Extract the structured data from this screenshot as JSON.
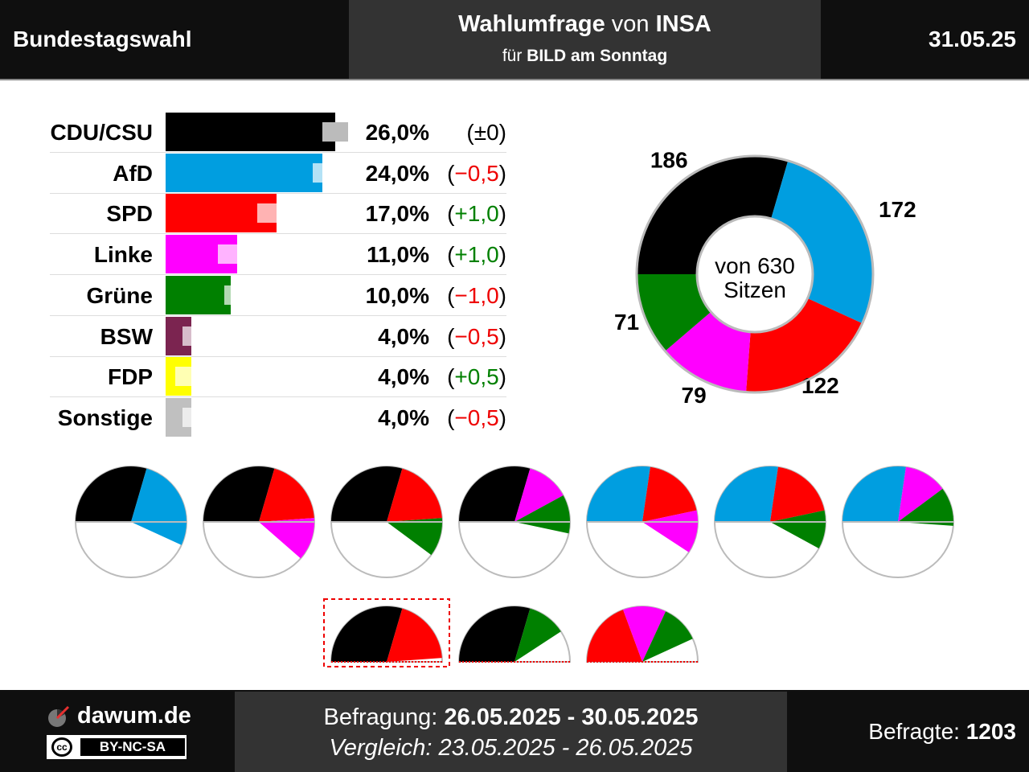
{
  "header": {
    "left": "Bundestagswahl",
    "title_bold1": "Wahlumfrage",
    "title_mid": " von ",
    "title_bold2": "INSA",
    "subtitle_pre": "für ",
    "subtitle_bold": "BILD am Sonntag",
    "date": "31.05.25"
  },
  "chart_data": [
    {
      "type": "bar",
      "orientation": "horizontal",
      "categories": [
        "CDU/CSU",
        "AfD",
        "SPD",
        "Linke",
        "Grüne",
        "BSW",
        "FDP",
        "Sonstige"
      ],
      "series": [
        {
          "values": [
            26.0,
            24.0,
            17.0,
            11.0,
            10.0,
            4.0,
            4.0,
            4.0
          ]
        },
        {
          "values": [
            26.0,
            24.5,
            16.0,
            10.0,
            11.0,
            4.5,
            3.5,
            4.5
          ]
        }
      ],
      "value_labels": [
        "26,0%",
        "24,0%",
        "17,0%",
        "11,0%",
        "10,0%",
        "4,0%",
        "4,0%",
        "4,0%"
      ],
      "change_labels": [
        "(±0)",
        "(−0,5)",
        "(+1,0)",
        "(+1,0)",
        "(−1,0)",
        "(−0,5)",
        "(+0,5)",
        "(−0,5)"
      ],
      "change_signs": [
        "neu",
        "neg",
        "pos",
        "pos",
        "neg",
        "neg",
        "pos",
        "neg"
      ],
      "colors": [
        "#000000",
        "#009ee0",
        "#ff0000",
        "#ff00ff",
        "#008000",
        "#7b2450",
        "#ffff00",
        "#c0c0c0"
      ]
    },
    {
      "type": "pie",
      "variant": "donut",
      "labels": [
        "CDU/CSU",
        "AfD",
        "SPD",
        "Linke",
        "Grüne"
      ],
      "values": [
        186,
        172,
        122,
        79,
        71
      ],
      "value_labels": [
        "186",
        "172",
        "122",
        "79",
        "71"
      ],
      "colors": [
        "#000000",
        "#009ee0",
        "#ff0000",
        "#ff00ff",
        "#008000"
      ],
      "center_line1": "von 630",
      "center_line2": "Sitzen"
    }
  ],
  "coalitions": {
    "row1": [
      [
        "CDU/CSU",
        "AfD"
      ],
      [
        "CDU/CSU",
        "SPD",
        "Linke"
      ],
      [
        "CDU/CSU",
        "SPD",
        "Grüne"
      ],
      [
        "CDU/CSU",
        "Linke",
        "Grüne"
      ],
      [
        "AfD",
        "SPD",
        "Linke"
      ],
      [
        "AfD",
        "SPD",
        "Grüne"
      ],
      [
        "AfD",
        "Linke",
        "Grüne"
      ]
    ],
    "row2": [
      [
        "CDU/CSU",
        "SPD"
      ],
      [
        "CDU/CSU",
        "Grüne"
      ],
      [
        "SPD",
        "Linke",
        "Grüne"
      ]
    ]
  },
  "footer": {
    "logo": "dawum.de",
    "license": "BY-NC-SA",
    "license_icon": "cc",
    "befragung_label": "Befragung: ",
    "befragung": "26.05.2025 - 30.05.2025",
    "vergleich_label": "Vergleich: ",
    "vergleich": "23.05.2025 - 26.05.2025",
    "befragte_label": "Befragte: ",
    "befragte": "1203"
  }
}
